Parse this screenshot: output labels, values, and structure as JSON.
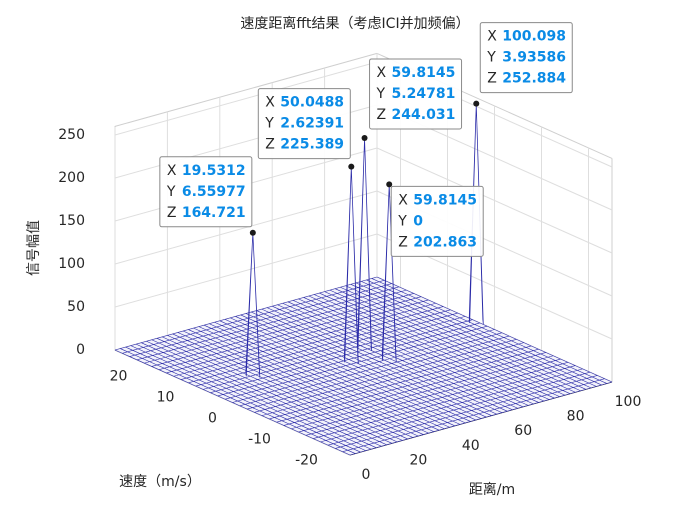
{
  "chart_data": {
    "type": "surface",
    "title": "速度距离fft结果（考虑ICI并加频偏）",
    "xlabel": "距离/m",
    "ylabel": "速度（m/s）",
    "zlabel": "信号幅值",
    "xlim": [
      0,
      100
    ],
    "ylim": [
      -25,
      25
    ],
    "zlim": [
      0,
      260
    ],
    "xticks": [
      0,
      20,
      40,
      60,
      80,
      100
    ],
    "yticks": [
      -20,
      -10,
      0,
      10,
      20
    ],
    "zticks": [
      0,
      50,
      100,
      150,
      200,
      250
    ],
    "grid": true,
    "mesh_color": "#2b2ba8",
    "peak_color": "#2f8fbf",
    "datatip_labels": [
      "X",
      "Y",
      "Z"
    ],
    "datatips": [
      {
        "x": 19.5312,
        "y": 6.55977,
        "z": 164.721
      },
      {
        "x": 50.0488,
        "y": 2.62391,
        "z": 225.389
      },
      {
        "x": 59.8145,
        "y": 5.24781,
        "z": 244.031
      },
      {
        "x": 100.098,
        "y": 3.93586,
        "z": 252.884
      },
      {
        "x": 59.8145,
        "y": 0,
        "z": 202.863
      }
    ]
  }
}
